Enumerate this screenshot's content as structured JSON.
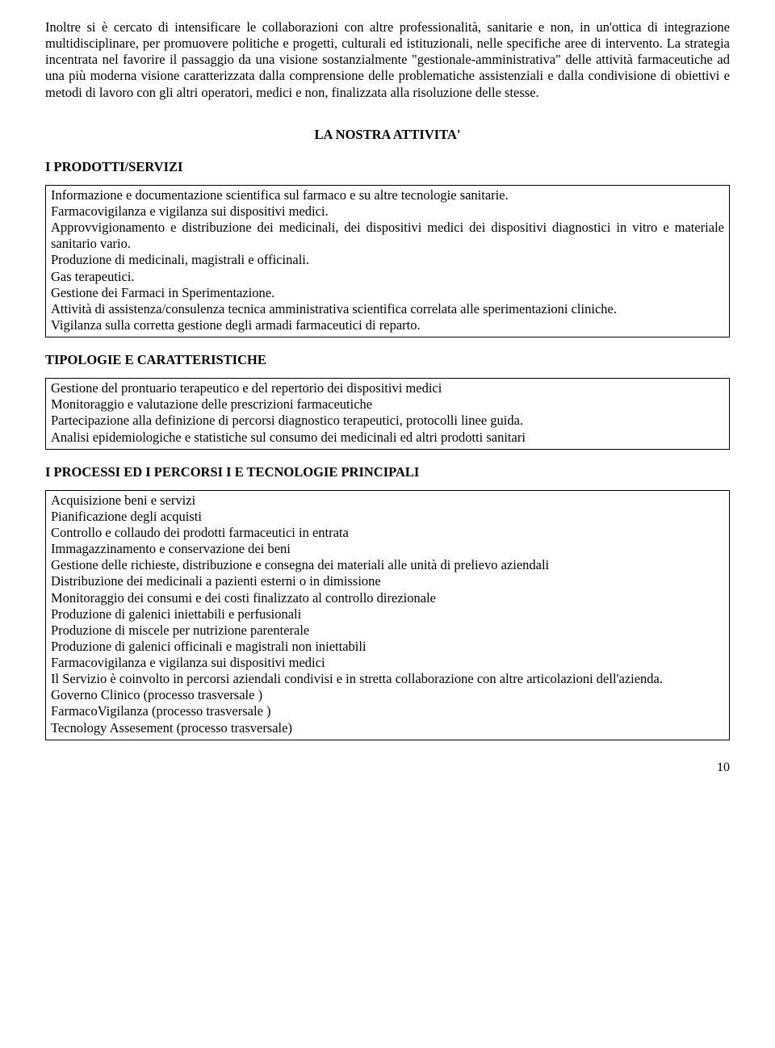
{
  "intro_paragraph": "Inoltre si è cercato di intensificare le collaborazioni con altre professionalità, sanitarie e non, in un'ottica di integrazione multidisciplinare, per promuovere politiche e progetti, culturali ed istituzionali, nelle specifiche aree di intervento. La strategia incentrata nel favorire il passaggio da una visione sostanzialmente \"gestionale-amministrativa\" delle attività farmaceutiche ad una più moderna visione caratterizzata dalla comprensione delle problematiche assistenziali e dalla condivisione di obiettivi e metodi di lavoro con gli altri operatori, medici e non, finalizzata alla risoluzione delle stesse.",
  "section_title": "LA NOSTRA ATTIVITA'",
  "sub1_heading": "I PRODOTTI/SERVIZI",
  "box1_l1": "Informazione e documentazione scientifica sul farmaco e su altre tecnologie sanitarie.",
  "box1_l2": "Farmacovigilanza e vigilanza sui dispositivi medici.",
  "box1_l3": "Approvvigionamento e distribuzione dei medicinali, dei dispositivi medici dei dispositivi diagnostici in vitro e materiale sanitario vario.",
  "box1_l4": "Produzione di medicinali, magistrali e officinali.",
  "box1_l5": "Gas terapeutici.",
  "box1_l6": "Gestione dei Farmaci in Sperimentazione.",
  "box1_l7": "Attività di assistenza/consulenza tecnica amministrativa scientifica correlata alle sperimentazioni cliniche.",
  "box1_l8": "Vigilanza sulla corretta gestione degli armadi farmaceutici di reparto.",
  "sub2_heading": "TIPOLOGIE E CARATTERISTICHE",
  "box2_l1": "Gestione del prontuario terapeutico e del repertorio dei dispositivi medici",
  "box2_l2": "Monitoraggio e valutazione delle prescrizioni farmaceutiche",
  "box2_l3": "Partecipazione alla definizione di percorsi diagnostico terapeutici, protocolli linee guida.",
  "box2_l4": "Analisi epidemiologiche e statistiche sul consumo dei medicinali ed altri prodotti sanitari",
  "sub3_heading": "I PROCESSI ED I PERCORSI I E TECNOLOGIE PRINCIPALI",
  "box3_l1": "Acquisizione beni e servizi",
  "box3_l2": "Pianificazione degli acquisti",
  "box3_l3": "Controllo e collaudo dei prodotti farmaceutici in entrata",
  "box3_l4": "Immagazzinamento e conservazione dei beni",
  "box3_l5": "Gestione delle richieste, distribuzione e consegna dei materiali alle unità di prelievo aziendali",
  "box3_l6": "Distribuzione dei medicinali a pazienti esterni o in dimissione",
  "box3_l7": "Monitoraggio dei consumi e dei costi finalizzato al controllo direzionale",
  "box3_l8": "Produzione di galenici iniettabili e perfusionali",
  "box3_l9": "Produzione di miscele per nutrizione parenterale",
  "box3_l10": "Produzione di galenici officinali e magistrali non iniettabili",
  "box3_l11": "Farmacovigilanza e vigilanza sui dispositivi medici",
  "box3_l12": "Il Servizio è coinvolto in percorsi aziendali condivisi e in stretta collaborazione con altre articolazioni dell'azienda.",
  "box3_l13": "Governo Clinico (processo trasversale )",
  "box3_l14": "FarmacoVigilanza (processo trasversale )",
  "box3_l15": "Tecnology Assesement (processo trasversale)",
  "page_number": "10"
}
